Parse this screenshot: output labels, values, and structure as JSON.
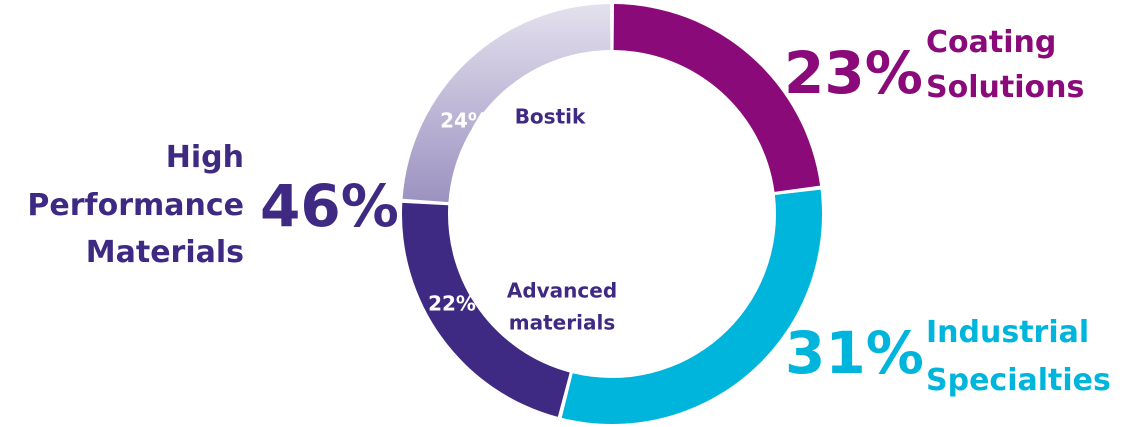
{
  "chart_data": {
    "type": "pie",
    "variant": "donut",
    "slices": [
      {
        "label": "Coating Solutions",
        "value": 23,
        "value_label": "23%",
        "color": "#8B0A7A"
      },
      {
        "label": "Industrial Specialties",
        "value": 31,
        "value_label": "31%",
        "color": "#00B5DC"
      },
      {
        "label": "Advanced materials",
        "value": 22,
        "value_label": "22%",
        "color": "#3F2A83"
      },
      {
        "label": "Bostik",
        "value": 24,
        "value_label": "24%",
        "color": "#B7AFCF"
      }
    ],
    "groups": [
      {
        "label_lines": [
          "High",
          "Performance",
          "Materials"
        ],
        "value": 46,
        "value_label": "46%",
        "color": "#3F2A83"
      }
    ],
    "start_angle_deg": 0,
    "direction": "clockwise"
  }
}
